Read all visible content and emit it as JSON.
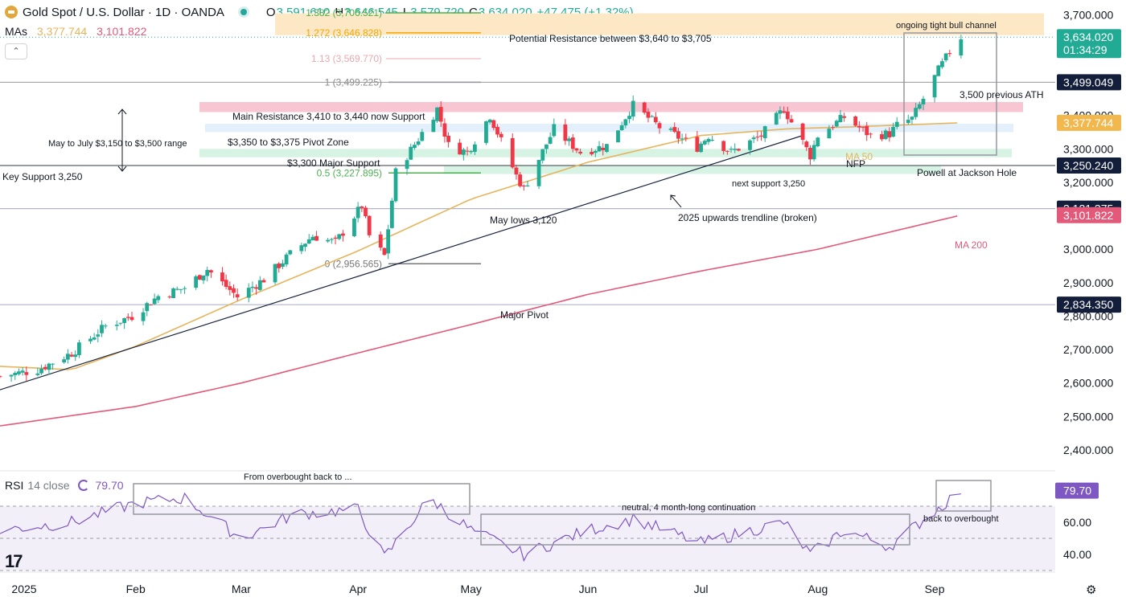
{
  "header": {
    "title": "Gold Spot / U.S. Dollar · 1D · OANDA",
    "open_label": "O",
    "open": "3,591.610",
    "high_label": "H",
    "high": "3,646.545",
    "low_label": "L",
    "low": "3,579.720",
    "close_label": "C",
    "close": "3,634.020",
    "change": "+47.475 (+1.32%)"
  },
  "mas": {
    "label": "MAs",
    "ma50": "3,377.744",
    "ma200": "3,101.822"
  },
  "collapse_glyph": "⌃",
  "rsi_header": {
    "label": "RSI",
    "params": "14 close",
    "value": "79.70"
  },
  "brand_glyph": "17",
  "settings_glyph": "⚙",
  "colors": {
    "up": "#22ab94",
    "down": "#f23645",
    "ma50": "#e6b45c",
    "ma200": "#e2597a",
    "rsi": "#7e57c2",
    "fib": "#999999",
    "text": "#131722"
  },
  "chart_data": [
    {
      "type": "candlestick",
      "title": "Gold Spot / U.S. Dollar · 1D · OANDA",
      "ylim": [
        2340,
        3745
      ],
      "y_ticks": [
        2400,
        2500,
        2600,
        2700,
        2800,
        2900,
        3000,
        3100,
        3200,
        3300,
        3400,
        3500,
        3600,
        3700
      ],
      "y_tick_labels": [
        "2,400.000",
        "2,500.000",
        "2,600.000",
        "2,700.000",
        "2,800.000",
        "2,900.000",
        "3,000.000",
        "3,100.000",
        "3,200.000",
        "3,300.000",
        "3,400.000",
        "3,500.000",
        "3,600.000",
        "3,700.000"
      ],
      "x_ticks": [
        {
          "label": "2025",
          "date": "2025-01-01"
        },
        {
          "label": "Feb",
          "date": "2025-02-01"
        },
        {
          "label": "Mar",
          "date": "2025-03-01"
        },
        {
          "label": "Apr",
          "date": "2025-04-01"
        },
        {
          "label": "May",
          "date": "2025-05-01"
        },
        {
          "label": "Jun",
          "date": "2025-06-01"
        },
        {
          "label": "Jul",
          "date": "2025-07-01"
        },
        {
          "label": "Aug",
          "date": "2025-08-01"
        },
        {
          "label": "Sep",
          "date": "2025-09-01"
        }
      ],
      "x_range": [
        "2024-12-27",
        "2025-10-03"
      ],
      "close_path": [
        {
          "date": "2024-12-27",
          "value": 2620
        },
        {
          "date": "2025-01-06",
          "value": 2640
        },
        {
          "date": "2025-01-15",
          "value": 2690
        },
        {
          "date": "2025-01-24",
          "value": 2770
        },
        {
          "date": "2025-01-31",
          "value": 2800
        },
        {
          "date": "2025-02-07",
          "value": 2860
        },
        {
          "date": "2025-02-14",
          "value": 2885
        },
        {
          "date": "2025-02-20",
          "value": 2940
        },
        {
          "date": "2025-02-28",
          "value": 2858
        },
        {
          "date": "2025-03-07",
          "value": 2910
        },
        {
          "date": "2025-03-14",
          "value": 2985
        },
        {
          "date": "2025-03-20",
          "value": 3040
        },
        {
          "date": "2025-03-26",
          "value": 3020
        },
        {
          "date": "2025-04-02",
          "value": 3130
        },
        {
          "date": "2025-04-04",
          "value": 3040
        },
        {
          "date": "2025-04-08",
          "value": 2980
        },
        {
          "date": "2025-04-11",
          "value": 3230
        },
        {
          "date": "2025-04-17",
          "value": 3330
        },
        {
          "date": "2025-04-22",
          "value": 3420
        },
        {
          "date": "2025-04-25",
          "value": 3310
        },
        {
          "date": "2025-04-30",
          "value": 3290
        },
        {
          "date": "2025-05-06",
          "value": 3400
        },
        {
          "date": "2025-05-13",
          "value": 3220
        },
        {
          "date": "2025-05-15",
          "value": 3180
        },
        {
          "date": "2025-05-23",
          "value": 3360
        },
        {
          "date": "2025-05-30",
          "value": 3290
        },
        {
          "date": "2025-06-06",
          "value": 3310
        },
        {
          "date": "2025-06-13",
          "value": 3430
        },
        {
          "date": "2025-06-20",
          "value": 3365
        },
        {
          "date": "2025-06-30",
          "value": 3305
        },
        {
          "date": "2025-07-03",
          "value": 3340
        },
        {
          "date": "2025-07-09",
          "value": 3290
        },
        {
          "date": "2025-07-17",
          "value": 3340
        },
        {
          "date": "2025-07-23",
          "value": 3420
        },
        {
          "date": "2025-07-30",
          "value": 3280
        },
        {
          "date": "2025-08-01",
          "value": 3340
        },
        {
          "date": "2025-08-08",
          "value": 3395
        },
        {
          "date": "2025-08-15",
          "value": 3340
        },
        {
          "date": "2025-08-20",
          "value": 3345
        },
        {
          "date": "2025-08-22",
          "value": 3370
        },
        {
          "date": "2025-08-26",
          "value": 3390
        },
        {
          "date": "2025-08-29",
          "value": 3450
        },
        {
          "date": "2025-09-02",
          "value": 3535
        },
        {
          "date": "2025-09-05",
          "value": 3590
        },
        {
          "date": "2025-09-08",
          "value": 3634
        }
      ],
      "ma50_path": [
        {
          "date": "2024-12-27",
          "value": 2650
        },
        {
          "date": "2025-01-15",
          "value": 2640
        },
        {
          "date": "2025-02-01",
          "value": 2710
        },
        {
          "date": "2025-03-01",
          "value": 2850
        },
        {
          "date": "2025-04-01",
          "value": 2995
        },
        {
          "date": "2025-05-01",
          "value": 3150
        },
        {
          "date": "2025-06-01",
          "value": 3260
        },
        {
          "date": "2025-07-01",
          "value": 3340
        },
        {
          "date": "2025-07-24",
          "value": 3360
        },
        {
          "date": "2025-08-08",
          "value": 3365
        },
        {
          "date": "2025-09-08",
          "value": 3378
        }
      ],
      "ma200_path": [
        {
          "date": "2024-12-27",
          "value": 2472
        },
        {
          "date": "2025-02-01",
          "value": 2530
        },
        {
          "date": "2025-03-01",
          "value": 2600
        },
        {
          "date": "2025-04-01",
          "value": 2690
        },
        {
          "date": "2025-05-01",
          "value": 2775
        },
        {
          "date": "2025-06-01",
          "value": 2865
        },
        {
          "date": "2025-07-01",
          "value": 2935
        },
        {
          "date": "2025-08-01",
          "value": 3000
        },
        {
          "date": "2025-09-08",
          "value": 3102
        }
      ],
      "fib_levels": [
        {
          "label": "1.382 (3,706.521)",
          "value": 3706.521,
          "color": "#4caf50"
        },
        {
          "label": "1.272 (3,646.828)",
          "value": 3646.828,
          "color": "#f7a600"
        },
        {
          "label": "1.13 (3,569.770)",
          "value": 3569.77,
          "color": "#f0c3c8"
        },
        {
          "label": "1 (3,499.225)",
          "value": 3499.225,
          "color": "#888888"
        },
        {
          "label": "0.5 (3,227.895)",
          "value": 3227.895,
          "color": "#4caf50"
        },
        {
          "label": "0 (2,956.565)",
          "value": 2956.565,
          "color": "#777777"
        }
      ],
      "zones": [
        {
          "label": "Potential Resistance between $3,640 to $3,705",
          "from": 3640,
          "to": 3705,
          "color": "#fce8c4"
        },
        {
          "label": "Main Resistance 3,410 to 3,440 now Support",
          "from": 3410,
          "to": 3440,
          "color": "#f7c6d2"
        },
        {
          "label": "$3,350 to $3,375 Pivot Zone",
          "from": 3350,
          "to": 3375,
          "color": "#e3f0fb"
        },
        {
          "label": "$3,300 Major Support",
          "from": 3275,
          "to": 3300,
          "color": "#d7f3e4"
        },
        {
          "label": "next support 3,250",
          "from": 3225,
          "to": 3250,
          "color": "#d7f3e4"
        }
      ],
      "hlines": [
        {
          "label": "Key Support 3,250",
          "value": 3250.24
        },
        {
          "label": "Major Pivot",
          "value": 2834.35
        },
        {
          "label": "May lows 3,120",
          "value": 3121.375
        }
      ],
      "annotations": [
        "May to July $3,150 to $3,500 range",
        "2025 upwards trendline (broken)",
        "ongoing tight bull channel",
        "3,500 previous ATH",
        "NFP",
        "Powell at Jackson Hole",
        "MA 50",
        "MA 200"
      ],
      "price_badges": [
        {
          "label": "3,634.020",
          "sub": "01:34:29",
          "value": 3634.02,
          "color": "#22ab94"
        },
        {
          "label": "3,499.049",
          "value": 3499.049,
          "color": "#131e3a"
        },
        {
          "label": "3,377.744",
          "value": 3377.744,
          "color": "#f2b84e"
        },
        {
          "label": "3,250.240",
          "value": 3250.24,
          "color": "#131e3a"
        },
        {
          "label": "3,121.375",
          "value": 3121.375,
          "color": "#131e3a"
        },
        {
          "label": "3,101.822",
          "value": 3101.822,
          "color": "#e2597a"
        },
        {
          "label": "2,834.350",
          "value": 2834.35,
          "color": "#131e3a"
        }
      ]
    },
    {
      "type": "line",
      "title": "RSI 14 close",
      "ylim": [
        30,
        90
      ],
      "y_ticks": [
        40,
        60
      ],
      "y_tick_labels": [
        "40.00",
        "60.00"
      ],
      "bands": [
        70,
        50,
        30
      ],
      "current": {
        "label": "79.70",
        "value": 79.7
      },
      "path": [
        {
          "date": "2024-12-27",
          "value": 55
        },
        {
          "date": "2025-01-15",
          "value": 60
        },
        {
          "date": "2025-02-01",
          "value": 72
        },
        {
          "date": "2025-02-14",
          "value": 75
        },
        {
          "date": "2025-03-01",
          "value": 50
        },
        {
          "date": "2025-03-15",
          "value": 65
        },
        {
          "date": "2025-04-01",
          "value": 68
        },
        {
          "date": "2025-04-08",
          "value": 38
        },
        {
          "date": "2025-04-20",
          "value": 75
        },
        {
          "date": "2025-05-01",
          "value": 55
        },
        {
          "date": "2025-05-15",
          "value": 40
        },
        {
          "date": "2025-06-01",
          "value": 55
        },
        {
          "date": "2025-06-13",
          "value": 62
        },
        {
          "date": "2025-07-01",
          "value": 47
        },
        {
          "date": "2025-07-23",
          "value": 60
        },
        {
          "date": "2025-07-30",
          "value": 40
        },
        {
          "date": "2025-08-08",
          "value": 55
        },
        {
          "date": "2025-08-20",
          "value": 45
        },
        {
          "date": "2025-09-08",
          "value": 79.7
        }
      ],
      "annotations": [
        "From overbought back to ...",
        "neutral, 4 month-long continuation",
        "back to overbought"
      ]
    }
  ]
}
